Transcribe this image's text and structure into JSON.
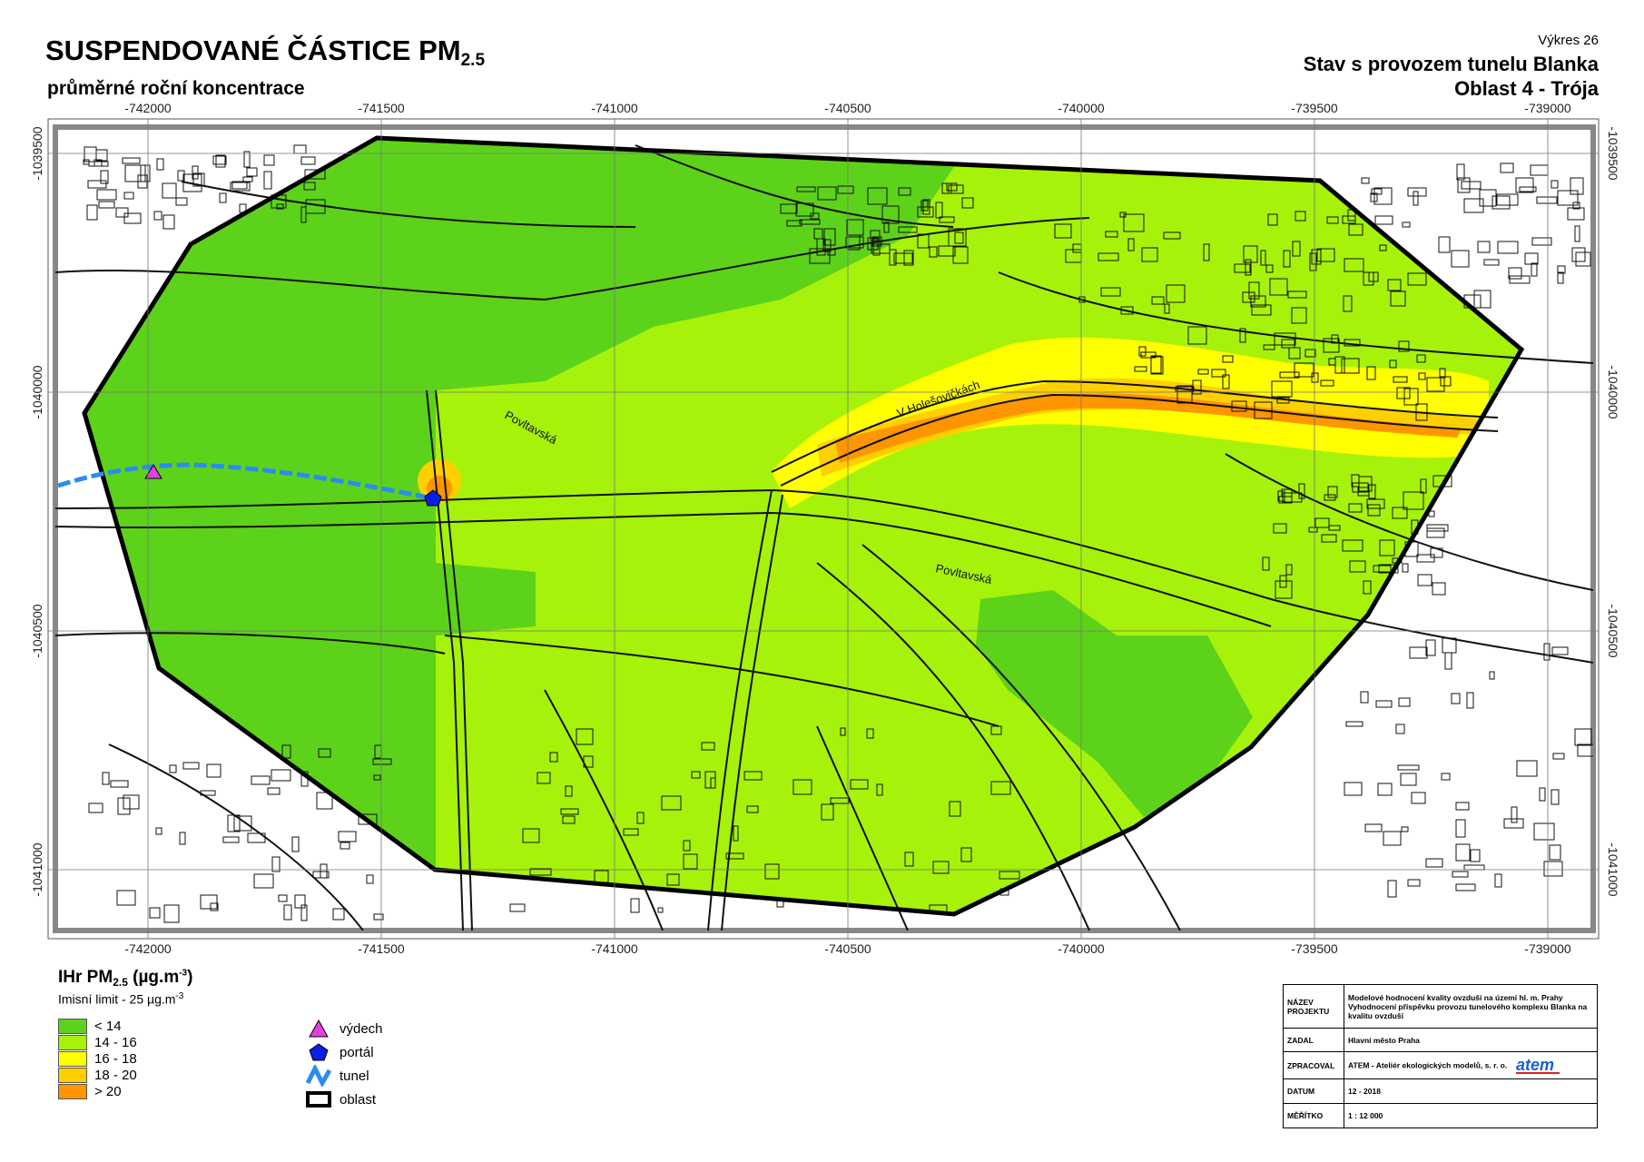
{
  "header": {
    "title": "SUSPENDOVANÉ ČÁSTICE PM",
    "title_sub": "2.5",
    "subtitle": "průměrné roční koncentrace",
    "drawing_no": "Výkres 26",
    "scenario": "Stav s provozem tunelu Blanka",
    "area": "Oblast 4 - Trója"
  },
  "map": {
    "x_ticks": [
      "-742000",
      "-741500",
      "-741000",
      "-740500",
      "-740000",
      "-739500",
      "-739000"
    ],
    "y_ticks": [
      "-1039500",
      "-1040000",
      "-1040500",
      "-1041000"
    ],
    "street_labels": [
      "Povltavská",
      "Povltavská",
      "V Holešovičkách"
    ],
    "colors": {
      "lt14": "#5dd21a",
      "c14_16": "#a6f20a",
      "c16_18": "#ffff00",
      "c18_20": "#ffd000",
      "gt20": "#ff9500",
      "tunnel": "#2a8cf0",
      "outlet": "#e040e0",
      "portal": "#0a1ee6"
    }
  },
  "legend": {
    "title": "IHr PM",
    "title_sub": "2.5",
    "title_unit": " (µg.m",
    "title_unit_exp": "-3",
    "title_close": ")",
    "limit": "Imisní limit - 25 µg.m",
    "limit_exp": "-3",
    "classes": [
      {
        "label": "< 14",
        "color": "#5dd21a"
      },
      {
        "label": "14 - 16",
        "color": "#a6f20a"
      },
      {
        "label": "16 - 18",
        "color": "#ffff00"
      },
      {
        "label": "18 - 20",
        "color": "#ffd000"
      },
      {
        "label": "> 20",
        "color": "#ff9500"
      }
    ],
    "symbols": [
      {
        "label": "výdech",
        "icon": "triangle-icon"
      },
      {
        "label": "portál",
        "icon": "pentagon-icon"
      },
      {
        "label": "tunel",
        "icon": "tunnel-line-icon"
      },
      {
        "label": "oblast",
        "icon": "area-outline-icon"
      }
    ]
  },
  "info_table": {
    "rows": [
      {
        "label": "NÁZEV PROJEKTU",
        "value": "Modelové hodnocení kvality ovzduší na území hl. m. Prahy Vyhodnocení příspěvku provozu tunelového komplexu Blanka na kvalitu ovzduší"
      },
      {
        "label": "ZADAL",
        "value": "Hlavní město Praha"
      },
      {
        "label": "ZPRACOVAL",
        "value": "ATEM - Ateliér ekologických modelů, s. r. o."
      },
      {
        "label": "DATUM",
        "value": "12 - 2018"
      },
      {
        "label": "MĚŘÍTKO",
        "value": "1 : 12 000"
      }
    ],
    "logo_text": "atem"
  }
}
